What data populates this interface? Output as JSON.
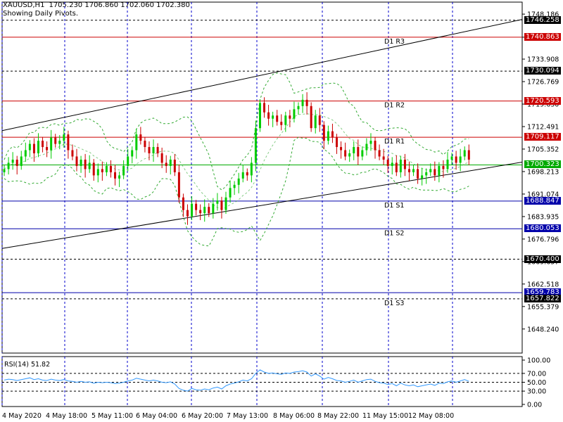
{
  "header": {
    "symbol": "XAUUSD,H1",
    "ohlc": "1705.230 1706.860 1702.060 1702.380",
    "subtitle": "Showing Daily Pivots."
  },
  "colors": {
    "grid": "#0000cc",
    "resistance": "#cc0000",
    "support": "#0000aa",
    "pivot": "#00aa00",
    "bull": "#00cc00",
    "bear": "#cc0000",
    "bands": "#33aa33",
    "channel": "#000000",
    "rsi": "#3399ff"
  },
  "chart_data": {
    "type": "candlestick",
    "symbol": "XAUUSD",
    "timeframe": "H1",
    "ylim": [
      1640.6,
      1752.0
    ],
    "price_ticks": [
      1748.186,
      1740.863,
      1733.908,
      1726.769,
      1719.63,
      1712.491,
      1705.352,
      1698.213,
      1691.074,
      1683.935,
      1676.796,
      1669.657,
      1662.518,
      1655.379,
      1648.24
    ],
    "price_ticks_text": [
      "1748.186",
      "1740.863",
      "1733.908",
      "1726.769",
      "1719.630",
      "1712.491",
      "1705.352",
      "1698.213",
      "1691.074",
      "1683.935",
      "1676.796",
      "1669.657",
      "1662.518",
      "1655.379",
      "1648.240"
    ],
    "x_labels": [
      "4 May 2020",
      "4 May 18:00",
      "5 May 11:00",
      "6 May 04:00",
      "6 May 20:00",
      "7 May 13:00",
      "8 May 06:00",
      "8 May 22:00",
      "11 May 15:00",
      "12 May 08:00"
    ],
    "pivots": [
      {
        "label": "D1 R3",
        "price": 1740.863,
        "price_text": "1740.863",
        "kind": "resistance"
      },
      {
        "label": "D1 R2",
        "price": 1720.593,
        "price_text": "1720.593",
        "kind": "resistance"
      },
      {
        "label": "D1 R1",
        "price": 1709.117,
        "price_text": "1709.117",
        "kind": "resistance"
      },
      {
        "label": "",
        "price": 1700.323,
        "price_text": "1700.323",
        "kind": "pivot"
      },
      {
        "label": "D1 S1",
        "price": 1688.847,
        "price_text": "1688.847",
        "kind": "support"
      },
      {
        "label": "D1 S2",
        "price": 1680.053,
        "price_text": "1680.053",
        "kind": "support"
      },
      {
        "label": "",
        "price": 1659.783,
        "price_text": "1659.783",
        "kind": "support"
      },
      {
        "label": "D1 S3",
        "price": 1657.822,
        "price_text": "1657.822",
        "kind": "level"
      }
    ],
    "levels": [
      {
        "price": 1746.258,
        "price_text": "1746.258"
      },
      {
        "price": 1730.094,
        "price_text": "1730.094"
      },
      {
        "price": 1670.4,
        "price_text": "1670.400"
      }
    ],
    "channel_upper": [
      [
        0,
        1711.2
      ],
      [
        120,
        1746.5
      ]
    ],
    "channel_lower": [
      [
        0,
        1673.8
      ],
      [
        120,
        1701.2
      ]
    ],
    "closes": [
      1699,
      1701,
      1702,
      1700,
      1703,
      1705,
      1707,
      1704,
      1708,
      1706,
      1705,
      1709,
      1707,
      1708,
      1710,
      1705,
      1703,
      1700,
      1702,
      1699,
      1701,
      1697,
      1699,
      1698,
      1700,
      1698,
      1696,
      1697,
      1700,
      1703,
      1705,
      1710,
      1708,
      1706,
      1704,
      1706,
      1704,
      1701,
      1700,
      1702,
      1698,
      1690,
      1686,
      1684,
      1688,
      1686,
      1685,
      1687,
      1685,
      1688,
      1689,
      1686,
      1690,
      1693,
      1694,
      1696,
      1698,
      1697,
      1701,
      1712,
      1720,
      1717,
      1715,
      1716,
      1714,
      1713,
      1716,
      1715,
      1718,
      1719,
      1721,
      1719,
      1712,
      1716,
      1713,
      1708,
      1711,
      1709,
      1706,
      1705,
      1703,
      1704,
      1706,
      1703,
      1705,
      1707,
      1708,
      1705,
      1703,
      1702,
      1700,
      1701,
      1698,
      1702,
      1699,
      1698,
      1699,
      1696,
      1697,
      1698,
      1699,
      1697,
      1700,
      1699,
      1702,
      1703,
      1701,
      1703,
      1705,
      1702
    ],
    "rsi": {
      "title": "RSI(14) 51.82",
      "ylim": [
        0,
        100
      ],
      "ticks": [
        100,
        70,
        50,
        30,
        0
      ],
      "ticks_text": [
        "100.00",
        "70.00",
        "50.00",
        "30.00",
        "0.00"
      ],
      "values": [
        55,
        57,
        56,
        54,
        56,
        58,
        60,
        56,
        58,
        55,
        54,
        57,
        55,
        54,
        56,
        53,
        52,
        50,
        52,
        50,
        51,
        48,
        50,
        49,
        50,
        49,
        47,
        48,
        50,
        53,
        55,
        59,
        57,
        55,
        53,
        55,
        53,
        50,
        49,
        51,
        46,
        36,
        32,
        30,
        36,
        33,
        32,
        35,
        33,
        37,
        39,
        35,
        42,
        46,
        48,
        51,
        55,
        53,
        58,
        70,
        78,
        73,
        70,
        71,
        69,
        68,
        71,
        70,
        73,
        74,
        76,
        73,
        64,
        69,
        64,
        57,
        61,
        58,
        54,
        53,
        50,
        52,
        55,
        50,
        53,
        56,
        57,
        52,
        49,
        48,
        45,
        47,
        42,
        48,
        44,
        42,
        44,
        40,
        42,
        44,
        46,
        43,
        48,
        47,
        51,
        53,
        50,
        53,
        56,
        52
      ]
    }
  }
}
